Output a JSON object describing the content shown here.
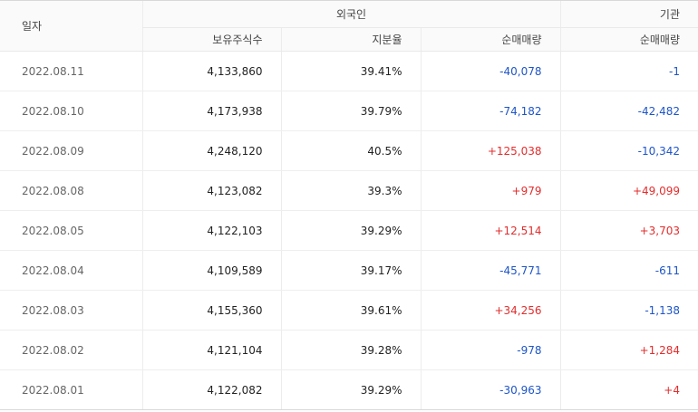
{
  "header": {
    "date_label": "일자",
    "foreign_group": "외국인",
    "institution_group": "기관",
    "holdings_label": "보유주식수",
    "ratio_label": "지분율",
    "foreign_net_label": "순매매량",
    "institution_net_label": "순매매량"
  },
  "rows": [
    {
      "date": "2022.08.11",
      "holdings": "4,133,860",
      "ratio": "39.41%",
      "foreign_net": "-40,078",
      "inst_net": "-1"
    },
    {
      "date": "2022.08.10",
      "holdings": "4,173,938",
      "ratio": "39.79%",
      "foreign_net": "-74,182",
      "inst_net": "-42,482"
    },
    {
      "date": "2022.08.09",
      "holdings": "4,248,120",
      "ratio": "40.5%",
      "foreign_net": "+125,038",
      "inst_net": "-10,342"
    },
    {
      "date": "2022.08.08",
      "holdings": "4,123,082",
      "ratio": "39.3%",
      "foreign_net": "+979",
      "inst_net": "+49,099"
    },
    {
      "date": "2022.08.05",
      "holdings": "4,122,103",
      "ratio": "39.29%",
      "foreign_net": "+12,514",
      "inst_net": "+3,703"
    },
    {
      "date": "2022.08.04",
      "holdings": "4,109,589",
      "ratio": "39.17%",
      "foreign_net": "-45,771",
      "inst_net": "-611"
    },
    {
      "date": "2022.08.03",
      "holdings": "4,155,360",
      "ratio": "39.61%",
      "foreign_net": "+34,256",
      "inst_net": "-1,138"
    },
    {
      "date": "2022.08.02",
      "holdings": "4,121,104",
      "ratio": "39.28%",
      "foreign_net": "-978",
      "inst_net": "+1,284"
    },
    {
      "date": "2022.08.01",
      "holdings": "4,122,082",
      "ratio": "39.29%",
      "foreign_net": "-30,963",
      "inst_net": "+4"
    }
  ],
  "colors": {
    "positive": "#e22d2d",
    "negative": "#1e55c8"
  }
}
